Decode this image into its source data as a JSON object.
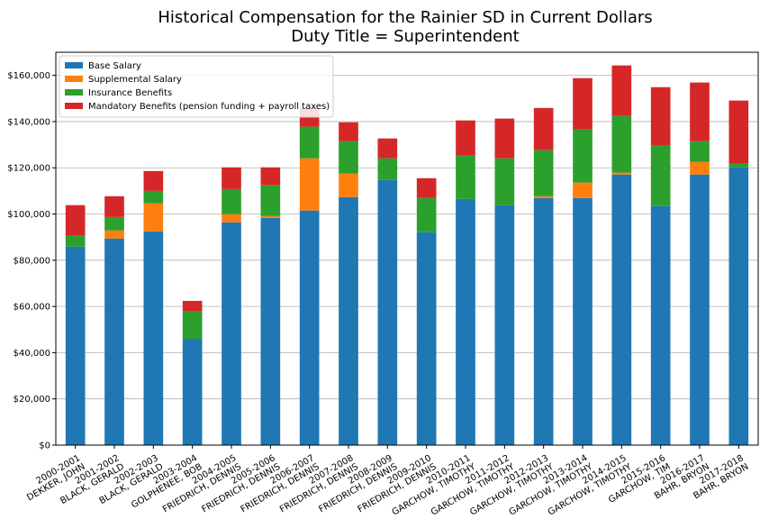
{
  "chart_data": {
    "type": "stacked_bar",
    "title": "Historical Compensation for the Rainier SD in Current Dollars",
    "subtitle": "Duty Title = Superintendent",
    "categories": [
      [
        "2000-2001",
        "DEKKER, JOHN"
      ],
      [
        "2001-2002",
        "BLACK, GERALD"
      ],
      [
        "2002-2003",
        "BLACK, GERALD"
      ],
      [
        "2003-2004",
        "GOLPHENEE, BOB"
      ],
      [
        "2004-2005",
        "FRIEDRICH, DENNIS"
      ],
      [
        "2005-2006",
        "FRIEDRICH, DENNIS"
      ],
      [
        "2006-2007",
        "FRIEDRICH, DENNIS"
      ],
      [
        "2007-2008",
        "FRIEDRICH, DENNIS"
      ],
      [
        "2008-2009",
        "FRIEDRICH, DENNIS"
      ],
      [
        "2009-2010",
        "FRIEDRICH, DENNIS"
      ],
      [
        "2010-2011",
        "GARCHOW, TIMOTHY"
      ],
      [
        "2011-2012",
        "GARCHOW, TIMOTHY"
      ],
      [
        "2012-2013",
        "GARCHOW, TIMOTHY"
      ],
      [
        "2013-2014",
        "GARCHOW, TIMOTHY"
      ],
      [
        "2014-2015",
        "GARCHOW, TIMOTHY"
      ],
      [
        "2015-2016",
        "GARCHOW, TIM"
      ],
      [
        "2016-2017",
        "BAHR, BRYON"
      ],
      [
        "2017-2018",
        "BAHR, BRYON"
      ]
    ],
    "series": [
      {
        "name": "Base Salary",
        "color": "#1f77b4",
        "values": [
          85850,
          89400,
          92500,
          46000,
          96400,
          98300,
          101500,
          107300,
          114700,
          92100,
          106500,
          103800,
          106900,
          106900,
          117100,
          103400,
          117100,
          120200
        ]
      },
      {
        "name": "Supplemental Salary",
        "color": "#ff7f0e",
        "values": [
          0,
          3500,
          12100,
          0,
          3500,
          800,
          22600,
          10200,
          0,
          0,
          0,
          0,
          800,
          6700,
          800,
          0,
          5400,
          0
        ]
      },
      {
        "name": "Insurance Benefits",
        "color": "#2ca02c",
        "values": [
          4700,
          5800,
          5400,
          12100,
          10900,
          13300,
          13700,
          14000,
          9400,
          14800,
          18800,
          20300,
          19900,
          23000,
          24500,
          26200,
          9000,
          1600
        ]
      },
      {
        "name": "Mandatory Benefits (pension funding + payroll taxes)",
        "color": "#d62728",
        "values": [
          13300,
          9000,
          8600,
          4300,
          9400,
          7800,
          8200,
          8200,
          8600,
          8600,
          15200,
          17200,
          18300,
          22200,
          21900,
          25300,
          25400,
          27300
        ]
      }
    ],
    "ylim": [
      0,
      170000
    ],
    "yticks": [
      {
        "value": 0,
        "label": "$0"
      },
      {
        "value": 20000,
        "label": "$20,000"
      },
      {
        "value": 40000,
        "label": "$40,000"
      },
      {
        "value": 60000,
        "label": "$60,000"
      },
      {
        "value": 80000,
        "label": "$80,000"
      },
      {
        "value": 100000,
        "label": "$100,000"
      },
      {
        "value": 120000,
        "label": "$120,000"
      },
      {
        "value": 140000,
        "label": "$140,000"
      },
      {
        "value": 160000,
        "label": "$160,000"
      }
    ],
    "grid": true,
    "legend": "upper left"
  }
}
